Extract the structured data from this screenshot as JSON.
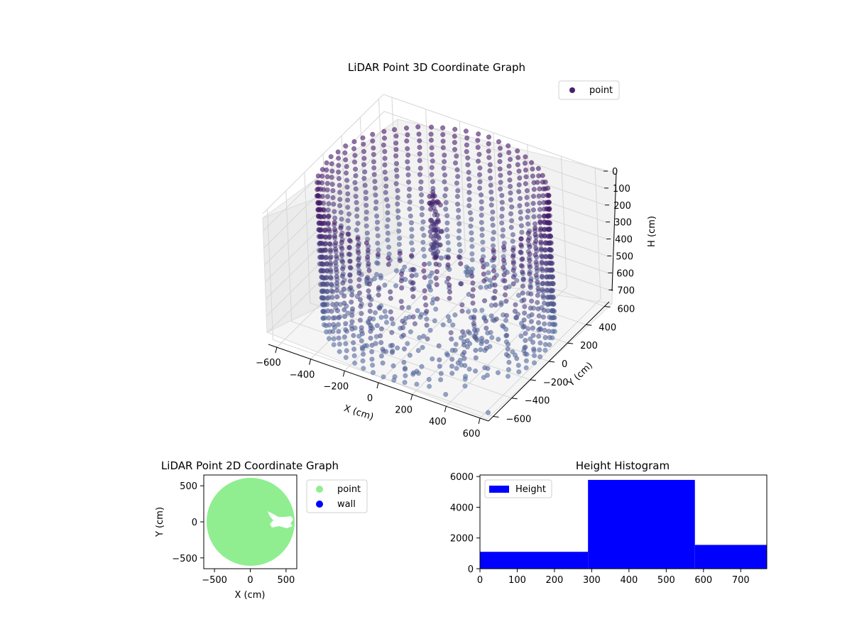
{
  "chart_data": [
    {
      "type": "scatter",
      "projection": "3d",
      "title": "LiDAR Point 3D Coordinate Graph",
      "xlabel": "X (cm)",
      "ylabel": "Y (cm)",
      "zlabel": "H (cm)",
      "xticks": [
        "−600",
        "−400",
        "−200",
        "0",
        "200",
        "400",
        "600"
      ],
      "yticks": [
        "−600",
        "−400",
        "−200",
        "0",
        "200",
        "400",
        "600"
      ],
      "zticks": [
        "0",
        "100",
        "200",
        "300",
        "400",
        "500",
        "600",
        "700"
      ],
      "xlim": [
        -650,
        650
      ],
      "ylim": [
        -650,
        650
      ],
      "zlim": [
        0,
        770
      ],
      "z_inverted": true,
      "grid": true,
      "legend": {
        "position": "top-right",
        "entries": [
          {
            "label": "point",
            "color": "#45216f"
          }
        ]
      },
      "colormap": "viridis (purple to blue-grey with height)",
      "series": [
        {
          "name": "point",
          "description_of_shape": "cylindrical wall of points, radius about 600, heights 0-770, plus floor points and a vertical object near the centre",
          "ring_radius": 600,
          "height_range": [
            0,
            770
          ],
          "outliers": [
            {
              "x": 100,
              "y": -650,
              "h": 700
            },
            {
              "x": 400,
              "y": -650,
              "h": 700
            },
            {
              "x": 650,
              "y": -650,
              "h": 720
            }
          ]
        }
      ]
    },
    {
      "type": "scatter",
      "title": "LiDAR Point 2D Coordinate Graph",
      "xlabel": "X (cm)",
      "ylabel": "Y (cm)",
      "xticks": [
        "−500",
        "0",
        "500"
      ],
      "yticks": [
        "500",
        "0",
        "−500"
      ],
      "xlim": [
        -650,
        650
      ],
      "ylim": [
        -650,
        650
      ],
      "legend": {
        "position": "outside-right",
        "entries": [
          {
            "label": "point",
            "color": "#90ee90"
          },
          {
            "label": "wall",
            "color": "#0000ff"
          }
        ]
      },
      "series": [
        {
          "name": "point",
          "color": "#90ee90",
          "shape": "filled disc of radius about 620 clipped at x = 650, with a small gap near (450, 0)"
        },
        {
          "name": "wall",
          "color": "#0000ff",
          "count": 0
        }
      ]
    },
    {
      "type": "bar",
      "subtype": "histogram",
      "title": "Height Histogram",
      "xticks": [
        "0",
        "100",
        "200",
        "300",
        "400",
        "500",
        "600",
        "700"
      ],
      "yticks": [
        "0",
        "2000",
        "4000",
        "6000"
      ],
      "xlim": [
        0,
        770
      ],
      "ylim": [
        0,
        6100
      ],
      "legend": {
        "position": "top-left",
        "entries": [
          {
            "label": "Height",
            "color": "#0000ff"
          }
        ]
      },
      "bins": [
        {
          "from": 0,
          "to": 290,
          "count": 1100
        },
        {
          "from": 290,
          "to": 577,
          "count": 5780
        },
        {
          "from": 577,
          "to": 770,
          "count": 1550
        }
      ],
      "color": "#0000ff"
    }
  ]
}
